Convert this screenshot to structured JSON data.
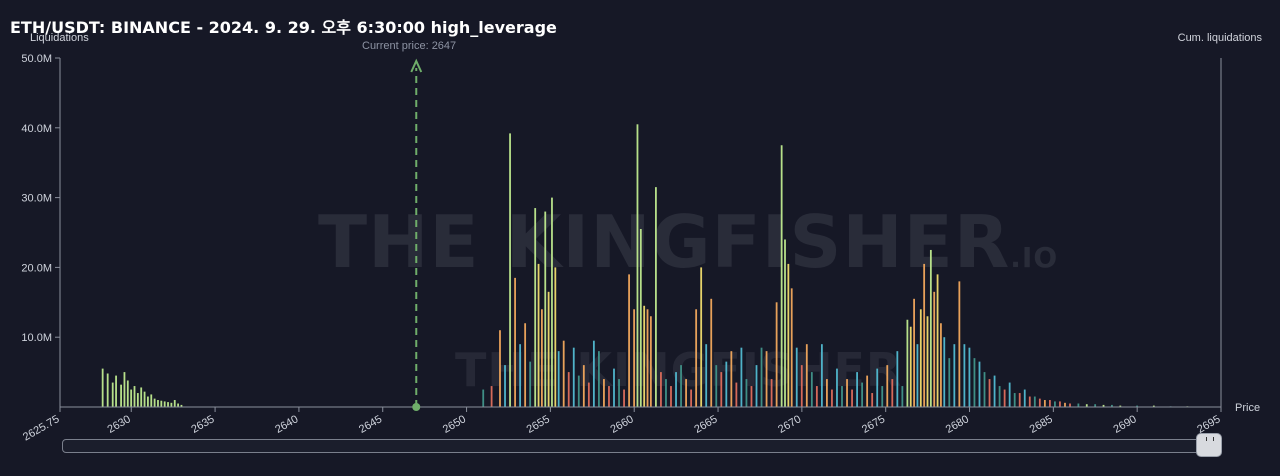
{
  "header": {
    "title": "ETH/USDT: BINANCE - 2024. 9. 29. 오후 6:30:00 high_leverage"
  },
  "watermark": {
    "main": "THE KINGFISHER",
    "suffix": ".IO",
    "secondary": "THE KINGFISHER"
  },
  "colors": {
    "background": "#161826",
    "axis": "#8a8f9c",
    "current_price_line": "#6fae6a",
    "green": "#b7e08a",
    "orange": "#e8a15a",
    "yellow": "#e6d36a",
    "cyan": "#4fb3c9",
    "red": "#d66a5a",
    "teal": "#3f8f86"
  },
  "chart_data": {
    "type": "bar",
    "title": "ETH/USDT: BINANCE - 2024. 9. 29. 오후 6:30:00 high_leverage",
    "xlabel": "Price",
    "ylabel": "Liquidations",
    "ylabel_right": "Cum. liquidations",
    "current_price_label": "Current price: 2647",
    "current_price": 2647,
    "xlim": [
      2625.75,
      2695
    ],
    "ylim": [
      0,
      50000000
    ],
    "x_ticks": [
      "2625.75",
      "2630",
      "2635",
      "2640",
      "2645",
      "2650",
      "2655",
      "2660",
      "2665",
      "2670",
      "2675",
      "2680",
      "2685",
      "2690",
      "2695"
    ],
    "y_ticks": [
      "10.0M",
      "20.0M",
      "30.0M",
      "40.0M",
      "50.0M"
    ],
    "grid": false,
    "bars": [
      {
        "x": 2628.3,
        "y": 5.5,
        "c": "green"
      },
      {
        "x": 2628.6,
        "y": 4.8,
        "c": "green"
      },
      {
        "x": 2628.9,
        "y": 3.5,
        "c": "green"
      },
      {
        "x": 2629.1,
        "y": 4.5,
        "c": "green"
      },
      {
        "x": 2629.4,
        "y": 3.2,
        "c": "green"
      },
      {
        "x": 2629.6,
        "y": 5.0,
        "c": "green"
      },
      {
        "x": 2629.8,
        "y": 3.8,
        "c": "green"
      },
      {
        "x": 2630.0,
        "y": 2.5,
        "c": "green"
      },
      {
        "x": 2630.2,
        "y": 3.0,
        "c": "green"
      },
      {
        "x": 2630.4,
        "y": 2.0,
        "c": "green"
      },
      {
        "x": 2630.6,
        "y": 2.8,
        "c": "green"
      },
      {
        "x": 2630.8,
        "y": 2.2,
        "c": "green"
      },
      {
        "x": 2631.0,
        "y": 1.5,
        "c": "green"
      },
      {
        "x": 2631.2,
        "y": 1.8,
        "c": "green"
      },
      {
        "x": 2631.4,
        "y": 1.2,
        "c": "green"
      },
      {
        "x": 2631.6,
        "y": 1.0,
        "c": "green"
      },
      {
        "x": 2631.8,
        "y": 0.9,
        "c": "green"
      },
      {
        "x": 2632.0,
        "y": 0.8,
        "c": "green"
      },
      {
        "x": 2632.2,
        "y": 0.7,
        "c": "green"
      },
      {
        "x": 2632.4,
        "y": 0.6,
        "c": "green"
      },
      {
        "x": 2632.6,
        "y": 1.0,
        "c": "green"
      },
      {
        "x": 2632.8,
        "y": 0.5,
        "c": "green"
      },
      {
        "x": 2633.0,
        "y": 0.3,
        "c": "green"
      },
      {
        "x": 2651.0,
        "y": 2.5,
        "c": "teal"
      },
      {
        "x": 2651.5,
        "y": 3.0,
        "c": "red"
      },
      {
        "x": 2652.0,
        "y": 11.0,
        "c": "orange"
      },
      {
        "x": 2652.3,
        "y": 6.0,
        "c": "cyan"
      },
      {
        "x": 2652.6,
        "y": 39.2,
        "c": "green"
      },
      {
        "x": 2652.9,
        "y": 18.5,
        "c": "orange"
      },
      {
        "x": 2653.2,
        "y": 9.0,
        "c": "cyan"
      },
      {
        "x": 2653.5,
        "y": 12.0,
        "c": "orange"
      },
      {
        "x": 2653.8,
        "y": 6.5,
        "c": "teal"
      },
      {
        "x": 2654.1,
        "y": 28.5,
        "c": "green"
      },
      {
        "x": 2654.3,
        "y": 20.5,
        "c": "yellow"
      },
      {
        "x": 2654.5,
        "y": 14.0,
        "c": "orange"
      },
      {
        "x": 2654.7,
        "y": 28.0,
        "c": "green"
      },
      {
        "x": 2654.9,
        "y": 16.5,
        "c": "yellow"
      },
      {
        "x": 2655.1,
        "y": 30.0,
        "c": "green"
      },
      {
        "x": 2655.3,
        "y": 20.0,
        "c": "yellow"
      },
      {
        "x": 2655.5,
        "y": 8.0,
        "c": "cyan"
      },
      {
        "x": 2655.8,
        "y": 9.5,
        "c": "orange"
      },
      {
        "x": 2656.1,
        "y": 5.0,
        "c": "red"
      },
      {
        "x": 2656.4,
        "y": 8.5,
        "c": "cyan"
      },
      {
        "x": 2656.7,
        "y": 4.5,
        "c": "teal"
      },
      {
        "x": 2657.0,
        "y": 6.0,
        "c": "orange"
      },
      {
        "x": 2657.3,
        "y": 3.5,
        "c": "red"
      },
      {
        "x": 2657.6,
        "y": 9.5,
        "c": "cyan"
      },
      {
        "x": 2657.9,
        "y": 8.0,
        "c": "teal"
      },
      {
        "x": 2658.2,
        "y": 4.0,
        "c": "orange"
      },
      {
        "x": 2658.5,
        "y": 3.0,
        "c": "red"
      },
      {
        "x": 2658.8,
        "y": 5.5,
        "c": "cyan"
      },
      {
        "x": 2659.1,
        "y": 4.0,
        "c": "teal"
      },
      {
        "x": 2659.4,
        "y": 2.5,
        "c": "red"
      },
      {
        "x": 2659.7,
        "y": 19.0,
        "c": "orange"
      },
      {
        "x": 2660.0,
        "y": 14.0,
        "c": "orange"
      },
      {
        "x": 2660.2,
        "y": 40.5,
        "c": "green"
      },
      {
        "x": 2660.4,
        "y": 25.5,
        "c": "green"
      },
      {
        "x": 2660.6,
        "y": 14.5,
        "c": "yellow"
      },
      {
        "x": 2660.8,
        "y": 14.0,
        "c": "orange"
      },
      {
        "x": 2661.0,
        "y": 13.0,
        "c": "orange"
      },
      {
        "x": 2661.3,
        "y": 31.5,
        "c": "green"
      },
      {
        "x": 2661.6,
        "y": 5.0,
        "c": "red"
      },
      {
        "x": 2661.9,
        "y": 4.0,
        "c": "teal"
      },
      {
        "x": 2662.2,
        "y": 3.0,
        "c": "red"
      },
      {
        "x": 2662.5,
        "y": 5.0,
        "c": "cyan"
      },
      {
        "x": 2662.8,
        "y": 6.0,
        "c": "teal"
      },
      {
        "x": 2663.1,
        "y": 4.0,
        "c": "orange"
      },
      {
        "x": 2663.4,
        "y": 2.5,
        "c": "red"
      },
      {
        "x": 2663.7,
        "y": 14.0,
        "c": "orange"
      },
      {
        "x": 2664.0,
        "y": 20.0,
        "c": "yellow"
      },
      {
        "x": 2664.3,
        "y": 9.0,
        "c": "cyan"
      },
      {
        "x": 2664.6,
        "y": 15.5,
        "c": "orange"
      },
      {
        "x": 2664.9,
        "y": 6.0,
        "c": "teal"
      },
      {
        "x": 2665.2,
        "y": 5.0,
        "c": "red"
      },
      {
        "x": 2665.5,
        "y": 6.5,
        "c": "cyan"
      },
      {
        "x": 2665.8,
        "y": 8.0,
        "c": "orange"
      },
      {
        "x": 2666.1,
        "y": 3.5,
        "c": "red"
      },
      {
        "x": 2666.4,
        "y": 8.5,
        "c": "cyan"
      },
      {
        "x": 2666.7,
        "y": 4.0,
        "c": "teal"
      },
      {
        "x": 2667.0,
        "y": 3.0,
        "c": "red"
      },
      {
        "x": 2667.3,
        "y": 6.0,
        "c": "cyan"
      },
      {
        "x": 2667.6,
        "y": 8.5,
        "c": "teal"
      },
      {
        "x": 2667.9,
        "y": 8.0,
        "c": "orange"
      },
      {
        "x": 2668.2,
        "y": 4.0,
        "c": "red"
      },
      {
        "x": 2668.5,
        "y": 15.0,
        "c": "orange"
      },
      {
        "x": 2668.8,
        "y": 37.5,
        "c": "green"
      },
      {
        "x": 2669.0,
        "y": 24.0,
        "c": "green"
      },
      {
        "x": 2669.2,
        "y": 20.5,
        "c": "yellow"
      },
      {
        "x": 2669.4,
        "y": 17.0,
        "c": "orange"
      },
      {
        "x": 2669.7,
        "y": 8.5,
        "c": "cyan"
      },
      {
        "x": 2670.0,
        "y": 6.0,
        "c": "red"
      },
      {
        "x": 2670.3,
        "y": 9.0,
        "c": "orange"
      },
      {
        "x": 2670.6,
        "y": 5.0,
        "c": "teal"
      },
      {
        "x": 2670.9,
        "y": 3.0,
        "c": "red"
      },
      {
        "x": 2671.2,
        "y": 9.0,
        "c": "cyan"
      },
      {
        "x": 2671.5,
        "y": 4.0,
        "c": "orange"
      },
      {
        "x": 2671.8,
        "y": 2.5,
        "c": "red"
      },
      {
        "x": 2672.1,
        "y": 5.5,
        "c": "cyan"
      },
      {
        "x": 2672.4,
        "y": 3.0,
        "c": "teal"
      },
      {
        "x": 2672.7,
        "y": 4.0,
        "c": "orange"
      },
      {
        "x": 2673.0,
        "y": 2.5,
        "c": "red"
      },
      {
        "x": 2673.3,
        "y": 5.0,
        "c": "cyan"
      },
      {
        "x": 2673.6,
        "y": 3.5,
        "c": "teal"
      },
      {
        "x": 2673.9,
        "y": 4.5,
        "c": "orange"
      },
      {
        "x": 2674.2,
        "y": 2.0,
        "c": "red"
      },
      {
        "x": 2674.5,
        "y": 5.5,
        "c": "cyan"
      },
      {
        "x": 2674.8,
        "y": 3.0,
        "c": "teal"
      },
      {
        "x": 2675.1,
        "y": 6.0,
        "c": "orange"
      },
      {
        "x": 2675.4,
        "y": 4.0,
        "c": "red"
      },
      {
        "x": 2675.7,
        "y": 8.0,
        "c": "cyan"
      },
      {
        "x": 2676.0,
        "y": 3.0,
        "c": "teal"
      },
      {
        "x": 2676.3,
        "y": 12.5,
        "c": "green"
      },
      {
        "x": 2676.5,
        "y": 11.5,
        "c": "yellow"
      },
      {
        "x": 2676.7,
        "y": 15.5,
        "c": "orange"
      },
      {
        "x": 2676.9,
        "y": 9.0,
        "c": "cyan"
      },
      {
        "x": 2677.1,
        "y": 14.0,
        "c": "yellow"
      },
      {
        "x": 2677.3,
        "y": 20.5,
        "c": "orange"
      },
      {
        "x": 2677.5,
        "y": 13.0,
        "c": "yellow"
      },
      {
        "x": 2677.7,
        "y": 22.5,
        "c": "green"
      },
      {
        "x": 2677.9,
        "y": 16.5,
        "c": "orange"
      },
      {
        "x": 2678.1,
        "y": 19.0,
        "c": "yellow"
      },
      {
        "x": 2678.3,
        "y": 12.0,
        "c": "orange"
      },
      {
        "x": 2678.5,
        "y": 10.0,
        "c": "cyan"
      },
      {
        "x": 2678.8,
        "y": 7.0,
        "c": "teal"
      },
      {
        "x": 2679.1,
        "y": 9.0,
        "c": "cyan"
      },
      {
        "x": 2679.4,
        "y": 18.0,
        "c": "orange"
      },
      {
        "x": 2679.7,
        "y": 9.0,
        "c": "cyan"
      },
      {
        "x": 2680.0,
        "y": 8.5,
        "c": "cyan"
      },
      {
        "x": 2680.3,
        "y": 7.0,
        "c": "teal"
      },
      {
        "x": 2680.6,
        "y": 6.5,
        "c": "cyan"
      },
      {
        "x": 2680.9,
        "y": 5.0,
        "c": "teal"
      },
      {
        "x": 2681.2,
        "y": 4.0,
        "c": "red"
      },
      {
        "x": 2681.5,
        "y": 4.5,
        "c": "cyan"
      },
      {
        "x": 2681.8,
        "y": 3.0,
        "c": "teal"
      },
      {
        "x": 2682.1,
        "y": 2.5,
        "c": "red"
      },
      {
        "x": 2682.4,
        "y": 3.5,
        "c": "cyan"
      },
      {
        "x": 2682.7,
        "y": 2.0,
        "c": "teal"
      },
      {
        "x": 2683.0,
        "y": 2.0,
        "c": "red"
      },
      {
        "x": 2683.3,
        "y": 2.5,
        "c": "cyan"
      },
      {
        "x": 2683.6,
        "y": 1.5,
        "c": "red"
      },
      {
        "x": 2683.9,
        "y": 1.5,
        "c": "teal"
      },
      {
        "x": 2684.2,
        "y": 1.2,
        "c": "red"
      },
      {
        "x": 2684.5,
        "y": 1.0,
        "c": "orange"
      },
      {
        "x": 2684.8,
        "y": 1.0,
        "c": "red"
      },
      {
        "x": 2685.1,
        "y": 0.8,
        "c": "teal"
      },
      {
        "x": 2685.4,
        "y": 0.8,
        "c": "red"
      },
      {
        "x": 2685.7,
        "y": 0.6,
        "c": "orange"
      },
      {
        "x": 2686.0,
        "y": 0.5,
        "c": "red"
      },
      {
        "x": 2686.5,
        "y": 0.5,
        "c": "teal"
      },
      {
        "x": 2687.0,
        "y": 0.4,
        "c": "green"
      },
      {
        "x": 2687.5,
        "y": 0.4,
        "c": "teal"
      },
      {
        "x": 2688.0,
        "y": 0.3,
        "c": "green"
      },
      {
        "x": 2688.5,
        "y": 0.3,
        "c": "teal"
      },
      {
        "x": 2689.0,
        "y": 0.2,
        "c": "green"
      },
      {
        "x": 2690.0,
        "y": 0.2,
        "c": "teal"
      },
      {
        "x": 2691.0,
        "y": 0.2,
        "c": "green"
      },
      {
        "x": 2692.0,
        "y": 0.1,
        "c": "teal"
      },
      {
        "x": 2693.0,
        "y": 0.1,
        "c": "green"
      }
    ],
    "bar_value_unit": "M"
  }
}
